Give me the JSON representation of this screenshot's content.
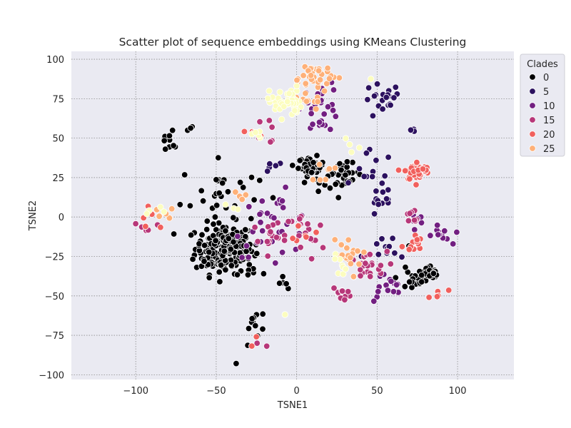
{
  "chart_data": {
    "type": "scatter",
    "title": "Scatter plot of sequence embeddings using KMeans Clustering",
    "xlabel": "TSNE1",
    "ylabel": "TSNE2",
    "xlim": [
      -140,
      135
    ],
    "ylim": [
      -103,
      105
    ],
    "xticks": [
      -100,
      -50,
      0,
      50,
      100
    ],
    "yticks": [
      -100,
      -75,
      -50,
      -25,
      0,
      25,
      50,
      75,
      100
    ],
    "xtick_labels": [
      "−100",
      "−50",
      "0",
      "50",
      "100"
    ],
    "ytick_labels": [
      "−100",
      "−75",
      "−50",
      "−25",
      "0",
      "25",
      "50",
      "75",
      "100"
    ],
    "grid": true,
    "grid_style": "dotted",
    "background_color": "#eaeaf2",
    "marker_edge_color": "#ffffff",
    "legend": {
      "title": "Clades",
      "placement": "outside-top-right",
      "entries": [
        {
          "label": "0",
          "color": "#000004"
        },
        {
          "label": "5",
          "color": "#2c115f"
        },
        {
          "label": "10",
          "color": "#721f81"
        },
        {
          "label": "15",
          "color": "#b73779"
        },
        {
          "label": "20",
          "color": "#f1605d"
        },
        {
          "label": "25",
          "color": "#feb078"
        }
      ]
    },
    "clusters": [
      {
        "clade": 0,
        "color": "#000004",
        "cx": -45,
        "cy": -20,
        "sx": 9,
        "sy": 8,
        "n": 200
      },
      {
        "clade": 0,
        "color": "#000004",
        "cx": -48,
        "cy": 15,
        "sx": 12,
        "sy": 10,
        "n": 28
      },
      {
        "clade": 0,
        "color": "#000004",
        "cx": -78,
        "cy": 48,
        "sx": 5,
        "sy": 4,
        "n": 10
      },
      {
        "clade": 0,
        "color": "#000004",
        "cx": -63,
        "cy": 58,
        "sx": 2,
        "sy": 2,
        "n": 3
      },
      {
        "clade": 0,
        "color": "#000004",
        "cx": 9,
        "cy": 32,
        "sx": 4,
        "sy": 3,
        "n": 40
      },
      {
        "clade": 0,
        "color": "#000004",
        "cx": 30,
        "cy": 28,
        "sx": 5,
        "sy": 3,
        "n": 30
      },
      {
        "clade": 0,
        "color": "#000004",
        "cx": 17,
        "cy": 20,
        "sx": 4,
        "sy": 3,
        "n": 8
      },
      {
        "clade": 0,
        "color": "#000004",
        "cx": 82,
        "cy": -37,
        "sx": 4,
        "sy": 3,
        "n": 35
      },
      {
        "clade": 0,
        "color": "#000004",
        "cx": 72,
        "cy": -38,
        "sx": 5,
        "sy": 6,
        "n": 15
      },
      {
        "clade": 0,
        "color": "#000004",
        "cx": -25,
        "cy": -68,
        "sx": 4,
        "sy": 5,
        "n": 10
      },
      {
        "clade": 0,
        "color": "#000004",
        "cx": -8,
        "cy": -42,
        "sx": 3,
        "sy": 2,
        "n": 5
      },
      {
        "clade": 0,
        "color": "#000004",
        "cx": -30,
        "cy": -30,
        "sx": 3,
        "sy": 8,
        "n": 8
      },
      {
        "clade": 0,
        "color": "#000004",
        "cx": -38,
        "cy": -93,
        "sx": 0.5,
        "sy": 0.5,
        "n": 1
      },
      {
        "clade": 0,
        "color": "#000004",
        "cx": -31,
        "cy": -82,
        "sx": 0.5,
        "sy": 0.5,
        "n": 1
      },
      {
        "clade": 5,
        "color": "#2c115f",
        "cx": 53,
        "cy": 73,
        "sx": 6,
        "sy": 6,
        "n": 20
      },
      {
        "clade": 5,
        "color": "#2c115f",
        "cx": 48,
        "cy": 28,
        "sx": 6,
        "sy": 7,
        "n": 15
      },
      {
        "clade": 5,
        "color": "#2c115f",
        "cx": 52,
        "cy": 6,
        "sx": 5,
        "sy": 4,
        "n": 10
      },
      {
        "clade": 5,
        "color": "#2c115f",
        "cx": 58,
        "cy": -20,
        "sx": 8,
        "sy": 5,
        "n": 12
      },
      {
        "clade": 5,
        "color": "#2c115f",
        "cx": -15,
        "cy": 32,
        "sx": 2,
        "sy": 3,
        "n": 5
      },
      {
        "clade": 5,
        "color": "#2c115f",
        "cx": 73,
        "cy": 55,
        "sx": 2,
        "sy": 1,
        "n": 3
      },
      {
        "clade": 10,
        "color": "#721f81",
        "cx": 15,
        "cy": 70,
        "sx": 6,
        "sy": 8,
        "n": 28
      },
      {
        "clade": 10,
        "color": "#721f81",
        "cx": -14,
        "cy": -5,
        "sx": 12,
        "sy": 10,
        "n": 35
      },
      {
        "clade": 10,
        "color": "#721f81",
        "cx": 75,
        "cy": 0,
        "sx": 3,
        "sy": 2,
        "n": 6
      },
      {
        "clade": 10,
        "color": "#721f81",
        "cx": 90,
        "cy": -12,
        "sx": 3,
        "sy": 3,
        "n": 12
      },
      {
        "clade": 10,
        "color": "#721f81",
        "cx": 55,
        "cy": -45,
        "sx": 6,
        "sy": 5,
        "n": 15
      },
      {
        "clade": 15,
        "color": "#b73779",
        "cx": 28,
        "cy": -48,
        "sx": 3,
        "sy": 2,
        "n": 10
      },
      {
        "clade": 15,
        "color": "#b73779",
        "cx": 42,
        "cy": -32,
        "sx": 7,
        "sy": 5,
        "n": 22
      },
      {
        "clade": 15,
        "color": "#b73779",
        "cx": 5,
        "cy": -12,
        "sx": 6,
        "sy": 8,
        "n": 18
      },
      {
        "clade": 15,
        "color": "#b73779",
        "cx": -15,
        "cy": -15,
        "sx": 10,
        "sy": 10,
        "n": 15
      },
      {
        "clade": 15,
        "color": "#b73779",
        "cx": -95,
        "cy": -5,
        "sx": 5,
        "sy": 6,
        "n": 6
      },
      {
        "clade": 15,
        "color": "#b73779",
        "cx": 72,
        "cy": 0,
        "sx": 3,
        "sy": 3,
        "n": 8
      },
      {
        "clade": 15,
        "color": "#b73779",
        "cx": -15,
        "cy": 55,
        "sx": 5,
        "sy": 5,
        "n": 6
      },
      {
        "clade": 15,
        "color": "#b73779",
        "cx": -25,
        "cy": -80,
        "sx": 3,
        "sy": 3,
        "n": 2
      },
      {
        "clade": 20,
        "color": "#f1605d",
        "cx": 75,
        "cy": 29,
        "sx": 4,
        "sy": 3,
        "n": 45
      },
      {
        "clade": 20,
        "color": "#f1605d",
        "cx": 72,
        "cy": -17,
        "sx": 3,
        "sy": 3,
        "n": 12
      },
      {
        "clade": 20,
        "color": "#f1605d",
        "cx": -90,
        "cy": 2,
        "sx": 5,
        "sy": 6,
        "n": 5
      },
      {
        "clade": 20,
        "color": "#f1605d",
        "cx": 5,
        "cy": -10,
        "sx": 3,
        "sy": 3,
        "n": 6
      },
      {
        "clade": 20,
        "color": "#f1605d",
        "cx": 88,
        "cy": -48,
        "sx": 3,
        "sy": 2,
        "n": 5
      },
      {
        "clade": 20,
        "color": "#f1605d",
        "cx": -22,
        "cy": 52,
        "sx": 4,
        "sy": 2,
        "n": 4
      },
      {
        "clade": 20,
        "color": "#f1605d",
        "cx": -25,
        "cy": -78,
        "sx": 2,
        "sy": 2,
        "n": 2
      },
      {
        "clade": 25,
        "color": "#feb078",
        "cx": 10,
        "cy": 90,
        "sx": 9,
        "sy": 4,
        "n": 30
      },
      {
        "clade": 25,
        "color": "#feb078",
        "cx": 5,
        "cy": 78,
        "sx": 6,
        "sy": 5,
        "n": 15
      },
      {
        "clade": 25,
        "color": "#feb078",
        "cx": 30,
        "cy": -25,
        "sx": 5,
        "sy": 7,
        "n": 18
      },
      {
        "clade": 25,
        "color": "#feb078",
        "cx": -85,
        "cy": 3,
        "sx": 4,
        "sy": 2,
        "n": 6
      },
      {
        "clade": 25,
        "color": "#feb078",
        "cx": -33,
        "cy": 12,
        "sx": 3,
        "sy": 2,
        "n": 5
      },
      {
        "clade": 25,
        "color": "#feb078",
        "cx": 15,
        "cy": 28,
        "sx": 4,
        "sy": 3,
        "n": 8
      },
      {
        "clade": 29,
        "color": "#fcfdbf",
        "cx": -7,
        "cy": 73,
        "sx": 5,
        "sy": 5,
        "n": 45
      },
      {
        "clade": 29,
        "color": "#fcfdbf",
        "cx": -25,
        "cy": 52,
        "sx": 4,
        "sy": 2,
        "n": 5
      },
      {
        "clade": 29,
        "color": "#fcfdbf",
        "cx": -88,
        "cy": 2,
        "sx": 4,
        "sy": 2,
        "n": 4
      },
      {
        "clade": 29,
        "color": "#fcfdbf",
        "cx": 35,
        "cy": 45,
        "sx": 4,
        "sy": 5,
        "n": 4
      },
      {
        "clade": 29,
        "color": "#fcfdbf",
        "cx": 28,
        "cy": -30,
        "sx": 4,
        "sy": 4,
        "n": 8
      },
      {
        "clade": 29,
        "color": "#fcfdbf",
        "cx": -5,
        "cy": -62,
        "sx": 1,
        "sy": 1,
        "n": 1
      },
      {
        "clade": 29,
        "color": "#fcfdbf",
        "cx": 45,
        "cy": 87,
        "sx": 1,
        "sy": 1,
        "n": 1
      },
      {
        "clade": 29,
        "color": "#fcfdbf",
        "cx": -40,
        "cy": 5,
        "sx": 2,
        "sy": 2,
        "n": 3
      }
    ]
  }
}
